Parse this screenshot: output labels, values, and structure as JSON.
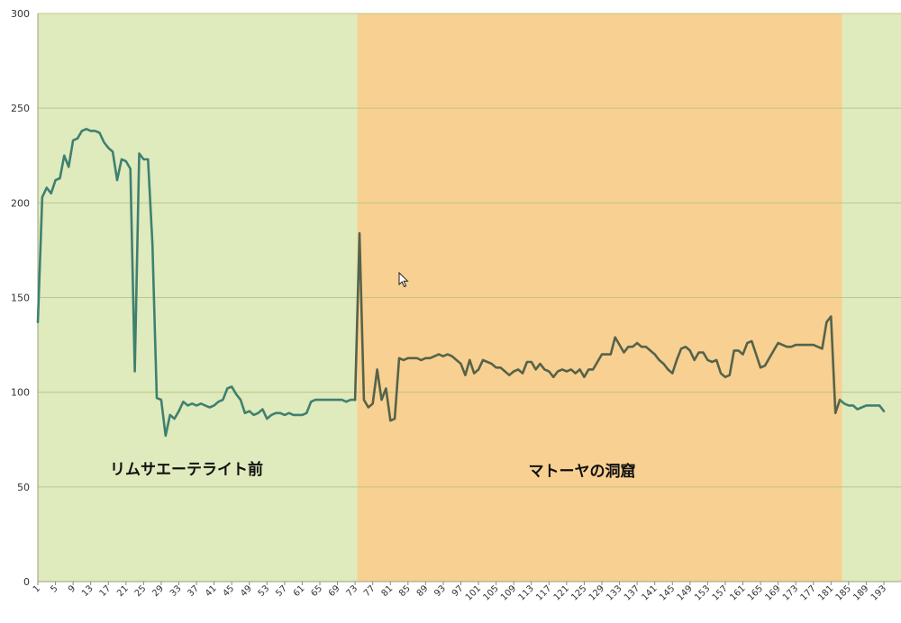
{
  "colors": {
    "region_a": "#dfeabd",
    "region_b": "#f8d091",
    "line_a": "#3f8070",
    "line_b": "#55634a",
    "grid": "#b8c98a"
  },
  "cursor": "arrow-pointer-icon",
  "chart_data": {
    "type": "line",
    "title": "",
    "xlabel": "",
    "ylabel": "",
    "ylim": [
      0,
      300
    ],
    "yticks": [
      0,
      50,
      100,
      150,
      200,
      250,
      300
    ],
    "x_start": 1,
    "x_label_step": 4,
    "grid": "horizontal",
    "regions": [
      {
        "label": "リムサエーテライト前",
        "x_from": 1,
        "x_to": 73
      },
      {
        "label": "マトーヤの洞窟",
        "x_from": 74,
        "x_to": 183
      },
      {
        "label": "",
        "x_from": 184,
        "x_to": 194
      }
    ],
    "series": [
      {
        "values": [
          137,
          203,
          208,
          205,
          212,
          213,
          225,
          219,
          233,
          234,
          238,
          239,
          238,
          238,
          237,
          232,
          229,
          227,
          212,
          223,
          222,
          218,
          111,
          226,
          223,
          223,
          178,
          97,
          96,
          77,
          88,
          86,
          90,
          95,
          93,
          94,
          93,
          94,
          93,
          92,
          93,
          95,
          96,
          102,
          103,
          99,
          96,
          89,
          90,
          88,
          89,
          91,
          86,
          88,
          89,
          89,
          88,
          89,
          88,
          88,
          88,
          89,
          95,
          96,
          96,
          96,
          96,
          96,
          96,
          96,
          95,
          96,
          96,
          184,
          96,
          92,
          94,
          112,
          96,
          102,
          85,
          86,
          118,
          117,
          118,
          118,
          118,
          117,
          118,
          118,
          119,
          120,
          119,
          120,
          119,
          117,
          115,
          109,
          117,
          110,
          112,
          117,
          116,
          115,
          113,
          113,
          111,
          109,
          111,
          112,
          110,
          116,
          116,
          112,
          115,
          112,
          111,
          108,
          111,
          112,
          111,
          112,
          110,
          112,
          108,
          112,
          112,
          116,
          120,
          120,
          120,
          129,
          125,
          121,
          124,
          124,
          126,
          124,
          124,
          122,
          120,
          117,
          115,
          112,
          110,
          117,
          123,
          124,
          122,
          117,
          121,
          121,
          117,
          116,
          117,
          110,
          108,
          109,
          122,
          122,
          120,
          126,
          127,
          120,
          113,
          114,
          118,
          122,
          126,
          125,
          124,
          124,
          125,
          125,
          125,
          125,
          125,
          124,
          123,
          137,
          140,
          89,
          96,
          94,
          93,
          93,
          91,
          92,
          93,
          93,
          93,
          93,
          90
        ]
      }
    ]
  }
}
